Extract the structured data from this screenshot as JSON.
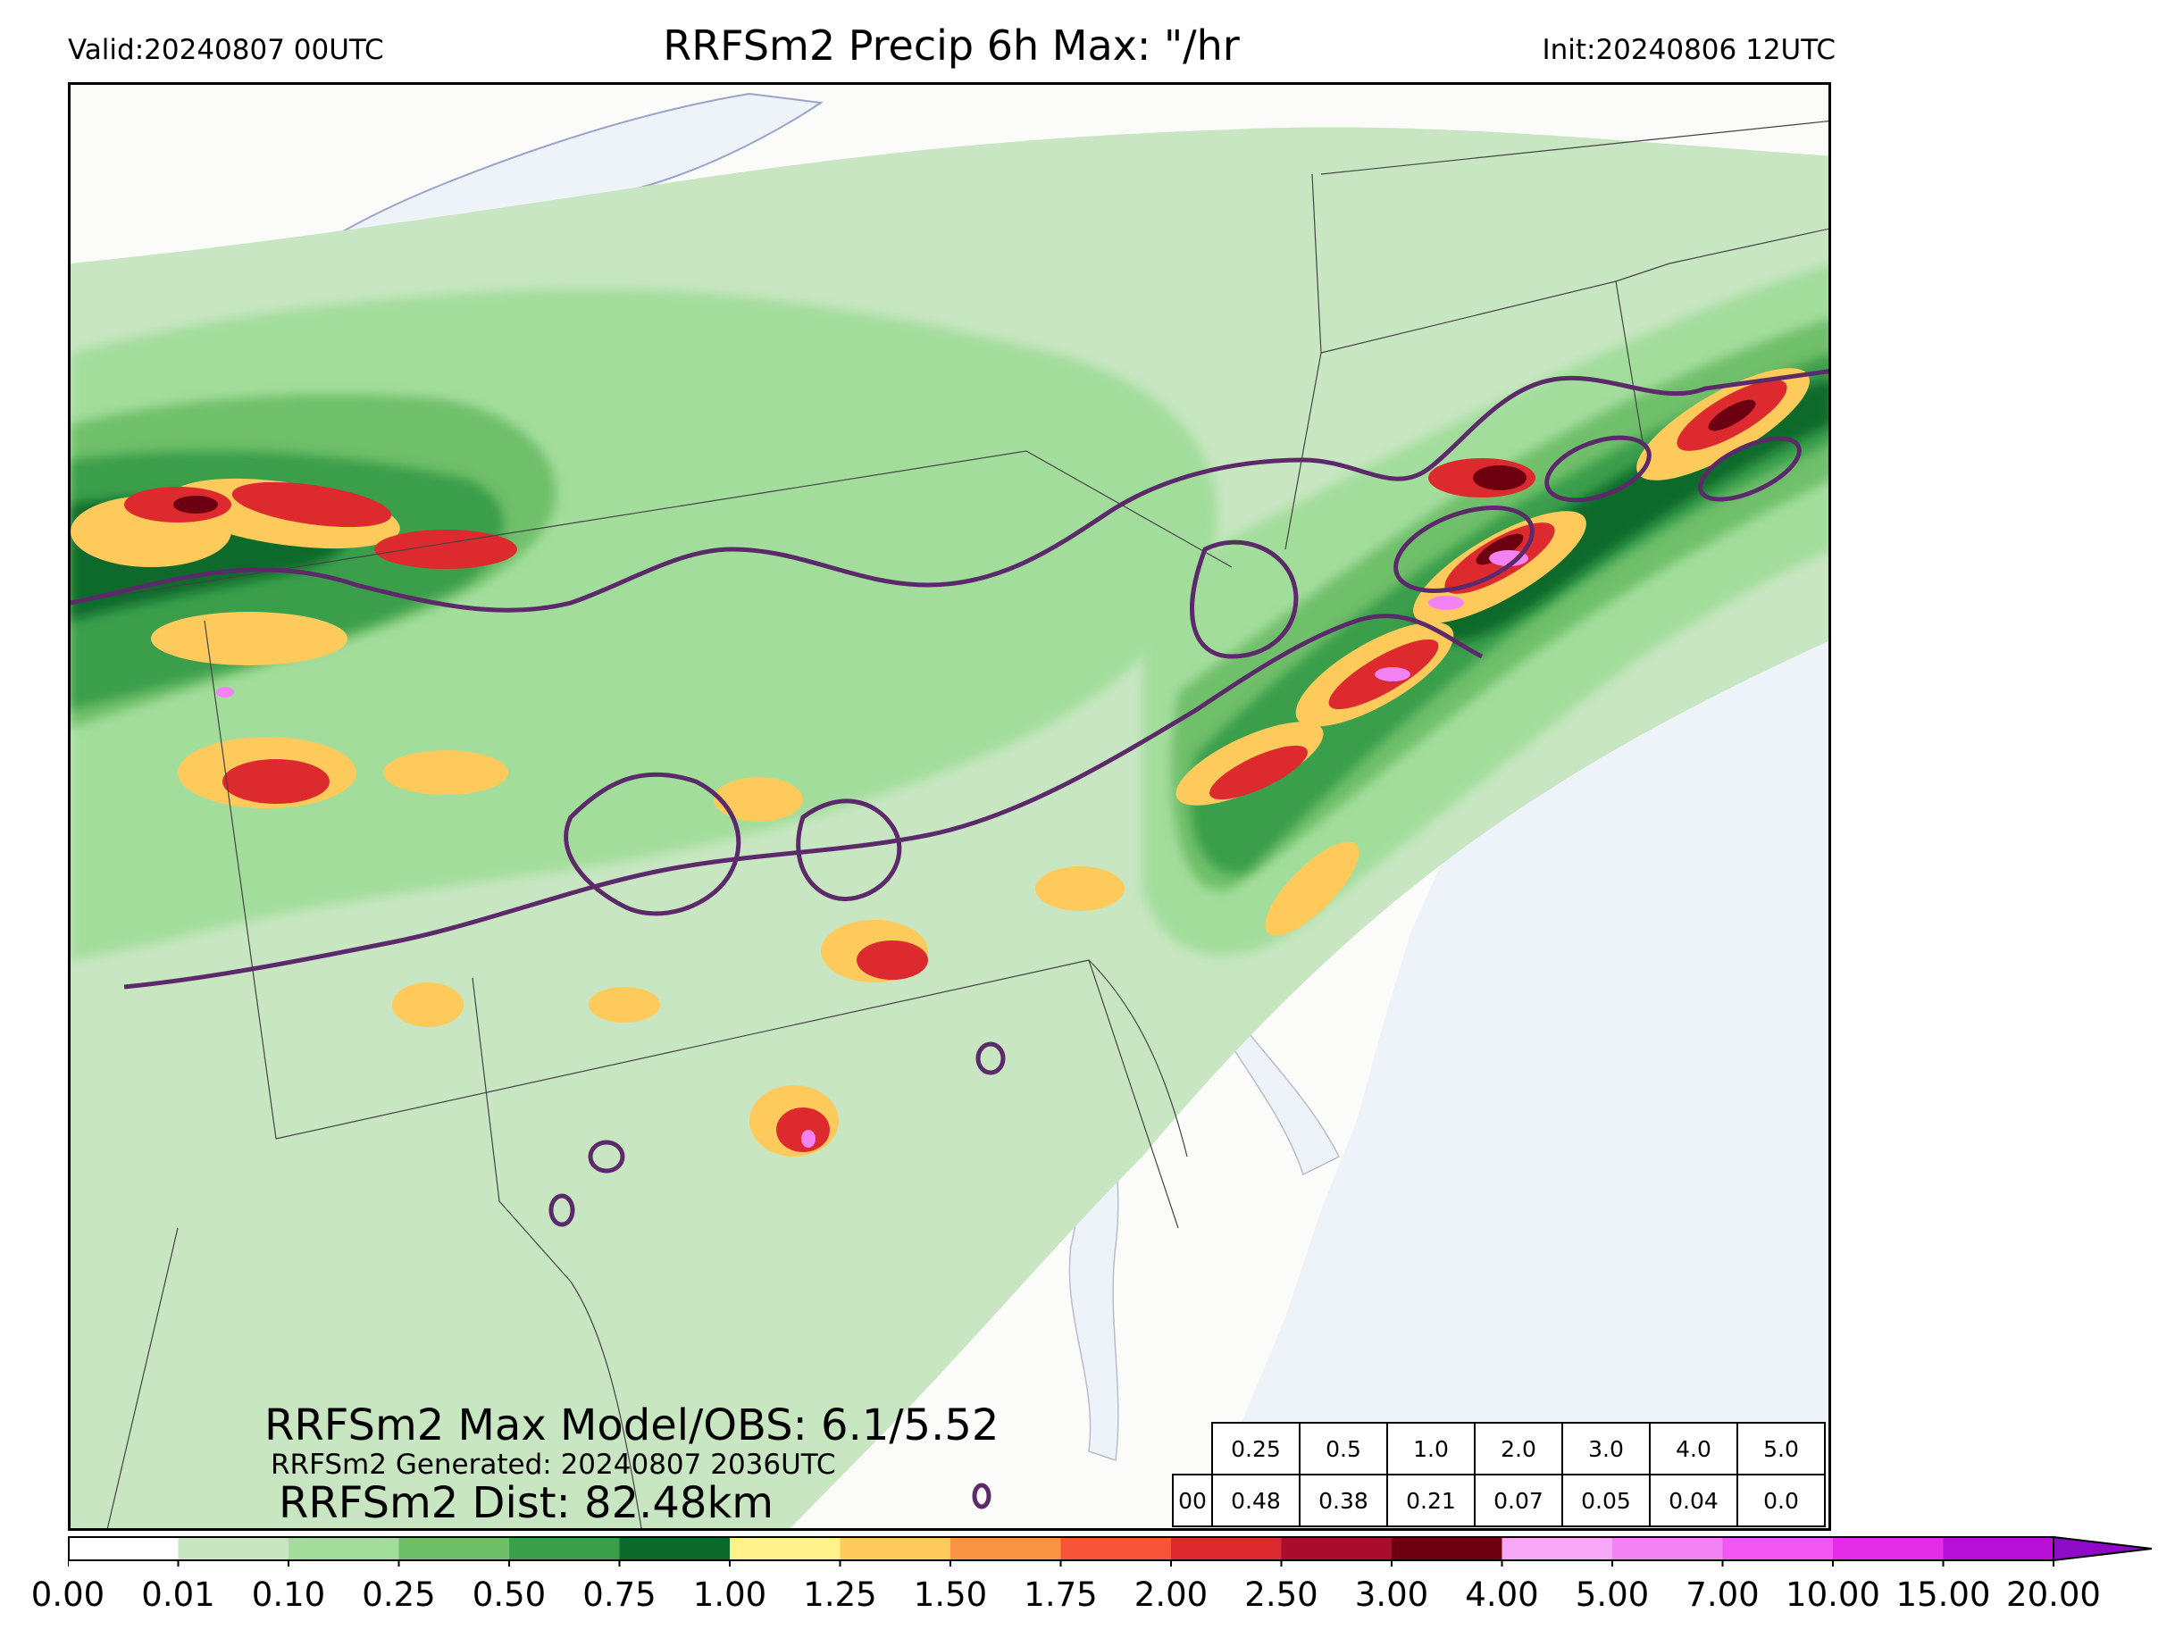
{
  "header": {
    "valid": "Valid:20240807 00UTC",
    "title": "RRFSm2 Precip 6h Max: \"/hr",
    "init": "Init:20240806 12UTC"
  },
  "stats": {
    "max_model_obs": "RRFSm2 Max Model/OBS: 6.1/5.52",
    "generated": "RRFSm2 Generated: 20240807 2036UTC",
    "dist": "RRFSm2 Dist: 82.48km"
  },
  "threshold_table": {
    "thresholds": [
      "0.25",
      "0.5",
      "1.0",
      "2.0",
      "3.0",
      "4.0",
      "5.0"
    ],
    "row_label": "00",
    "values": [
      "0.48",
      "0.38",
      "0.21",
      "0.07",
      "0.05",
      "0.04",
      "0.0"
    ]
  },
  "colorbar": {
    "ticks": [
      "0.00",
      "0.01",
      "0.10",
      "0.25",
      "0.50",
      "0.75",
      "1.00",
      "1.25",
      "1.50",
      "1.75",
      "2.00",
      "2.50",
      "3.00",
      "4.00",
      "5.00",
      "7.00",
      "10.00",
      "15.00",
      "20.00"
    ],
    "colors": [
      "#ffffff",
      "#c8e6c2",
      "#a3dd9c",
      "#6fbf6a",
      "#3a9e4b",
      "#0b6a2b",
      "#fff28a",
      "#fdca5b",
      "#fb9345",
      "#f6553a",
      "#dd2a2f",
      "#a80c2e",
      "#6d0010",
      "#f7a8f7",
      "#f383f3",
      "#f356f3",
      "#e22ce5",
      "#b80fd6"
    ],
    "extend_color": "#8e0ac7"
  },
  "map_colors": {
    "background": "#fbfbf9",
    "water": "#f1f4fa",
    "observed_contour": "#5c2a6a",
    "borders": "#444444"
  }
}
